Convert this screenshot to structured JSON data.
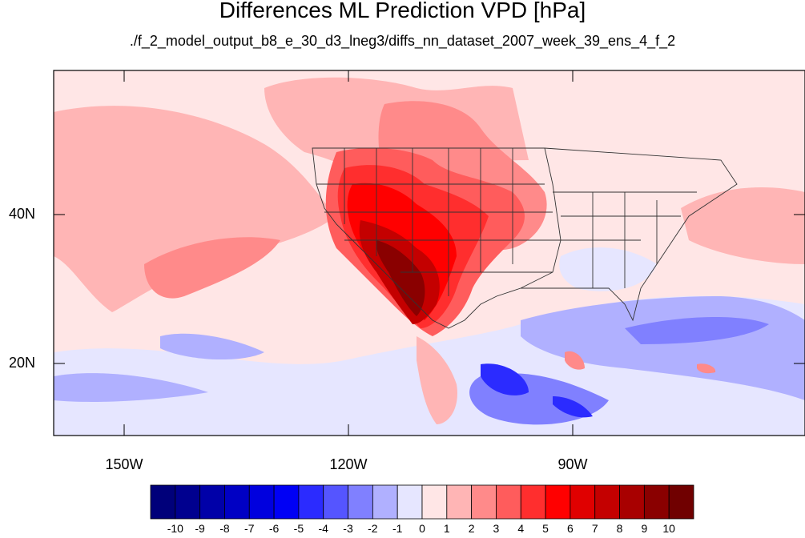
{
  "title": "Differences ML Prediction VPD [hPa]",
  "subtitle": "./f_2_model_output_b8_e_30_d3_lneg3/diffs_nn_dataset_2007_week_39_ens_4_f_2",
  "map": {
    "lon_range": [
      -160,
      -60
    ],
    "lat_range": [
      10,
      59
    ],
    "lat_labels": [
      "40N",
      "20N"
    ],
    "lon_labels": [
      "150W",
      "120W",
      "90W"
    ]
  },
  "colorbar": {
    "labels": [
      "-10",
      "-9",
      "-8",
      "-7",
      "-6",
      "-5",
      "-4",
      "-3",
      "-2",
      "-1",
      "0",
      "1",
      "2",
      "3",
      "4",
      "5",
      "6",
      "7",
      "8",
      "9",
      "10"
    ],
    "colors": [
      "#00007a",
      "#00008f",
      "#0000a8",
      "#0000c4",
      "#0000de",
      "#0000f5",
      "#2b2bff",
      "#5555ff",
      "#8080ff",
      "#b0b0ff",
      "#e6e6ff",
      "#ffe6e6",
      "#ffb5b5",
      "#ff8a8a",
      "#ff5c5c",
      "#ff2e2e",
      "#ff0000",
      "#e00000",
      "#c40000",
      "#a80000",
      "#8a0000",
      "#700000"
    ]
  }
}
